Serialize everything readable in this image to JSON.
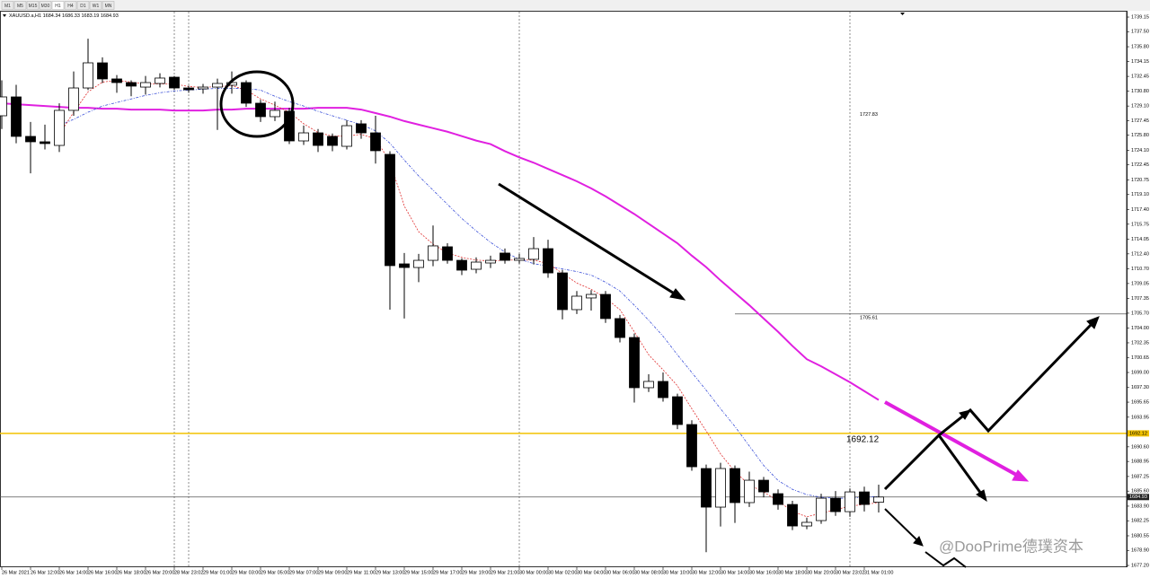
{
  "chart_data": {
    "type": "candlestick",
    "symbol": "XAUUSD.a,H1",
    "timeframes": [
      "M1",
      "M5",
      "M15",
      "M30",
      "H1",
      "H4",
      "D1",
      "W1",
      "MN"
    ],
    "active_timeframe": 4,
    "categories": [
      "26 Mar 2021",
      null,
      "26 Mar 12:00",
      null,
      "26 Mar 14:00",
      null,
      "26 Mar 16:00",
      null,
      "26 Mar 18:00",
      null,
      "26 Mar 20:00",
      null,
      "28 Mar 23:02",
      null,
      "29 Mar 01:00",
      null,
      "29 Mar 03:00",
      null,
      "29 Mar 05:00",
      null,
      "29 Mar 07:00",
      null,
      "29 Mar 09:00",
      null,
      "29 Mar 11:00",
      null,
      "29 Mar 13:00",
      null,
      "29 Mar 15:00",
      null,
      "29 Mar 17:00",
      null,
      "29 Mar 19:00",
      null,
      "29 Mar 21:00",
      null,
      "30 Mar 00:00",
      null,
      "30 Mar 02:00",
      null,
      "30 Mar 04:00",
      null,
      "30 Mar 06:00",
      null,
      "30 Mar 08:00",
      null,
      "30 Mar 10:00",
      null,
      "30 Mar 12:00",
      null,
      "30 Mar 14:00",
      null,
      "30 Mar 16:00",
      null,
      "30 Mar 18:00",
      null,
      "30 Mar 20:00",
      null,
      "30 Mar 23:02",
      null,
      "31 Mar 01:00",
      null
    ],
    "open": [
      1728.0,
      1730.13,
      1725.67,
      1725.06,
      1724.65,
      1728.61,
      1731.14,
      1733.98,
      1732.16,
      1731.75,
      1731.24,
      1731.65,
      1732.36,
      1731.14,
      1731.04,
      1731.24,
      1731.45,
      1731.75,
      1729.42,
      1727.9,
      1728.51,
      1725.16,
      1726.07,
      1725.67,
      1724.55,
      1727.09,
      1726.07,
      1723.64,
      1711.27,
      1710.86,
      1711.67,
      1713.2,
      1711.67,
      1710.66,
      1711.37,
      1712.49,
      1711.67,
      1711.78,
      1712.99,
      1710.25,
      1706.1,
      1707.42,
      1707.82,
      1705.09,
      1702.95,
      1697.28,
      1697.99,
      1696.26,
      1693.12,
      1688.15,
      1683.79,
      1688.15,
      1684.3,
      1686.83,
      1685.31,
      1684.09,
      1681.66,
      1682.27,
      1684.8,
      1683.28,
      1685.51,
      1684.34
    ],
    "high": [
      1732.0,
      1731.5,
      1727.3,
      1727.0,
      1729.4,
      1733.0,
      1736.7,
      1734.6,
      1732.6,
      1732.0,
      1732.5,
      1732.8,
      1732.5,
      1731.4,
      1731.6,
      1732.2,
      1733.0,
      1732.0,
      1729.8,
      1729.6,
      1728.9,
      1726.9,
      1726.5,
      1726.0,
      1727.5,
      1727.5,
      1728.0,
      1724.0,
      1712.5,
      1712.4,
      1715.6,
      1713.6,
      1711.9,
      1712.0,
      1712.2,
      1713.0,
      1712.4,
      1714.3,
      1714.0,
      1710.6,
      1708.2,
      1708.3,
      1708.2,
      1705.5,
      1703.4,
      1698.8,
      1699.0,
      1696.6,
      1693.6,
      1688.6,
      1688.8,
      1688.5,
      1687.8,
      1687.2,
      1685.8,
      1684.5,
      1682.6,
      1685.3,
      1685.6,
      1685.9,
      1686.1,
      1686.33
    ],
    "low": [
      1726.5,
      1724.9,
      1721.5,
      1724.2,
      1723.9,
      1728.0,
      1730.9,
      1731.7,
      1730.6,
      1730.2,
      1730.4,
      1731.2,
      1730.9,
      1730.6,
      1730.5,
      1726.4,
      1730.5,
      1729.0,
      1727.3,
      1727.4,
      1724.8,
      1724.7,
      1723.9,
      1724.0,
      1724.2,
      1725.4,
      1722.6,
      1706.1,
      1705.1,
      1709.2,
      1711.0,
      1711.3,
      1710.0,
      1710.2,
      1710.8,
      1711.3,
      1711.3,
      1711.2,
      1709.7,
      1705.0,
      1705.6,
      1706.0,
      1704.6,
      1702.4,
      1695.6,
      1696.8,
      1695.7,
      1692.6,
      1687.9,
      1678.7,
      1681.6,
      1682.0,
      1683.8,
      1684.9,
      1683.5,
      1681.2,
      1681.3,
      1681.9,
      1682.8,
      1682.7,
      1683.3,
      1683.19
    ],
    "close": [
      1730.13,
      1725.67,
      1725.06,
      1724.86,
      1728.61,
      1731.14,
      1733.98,
      1732.16,
      1731.75,
      1731.35,
      1731.75,
      1732.26,
      1731.14,
      1730.94,
      1731.24,
      1731.65,
      1731.75,
      1729.42,
      1727.9,
      1728.61,
      1725.16,
      1726.07,
      1724.65,
      1724.65,
      1726.88,
      1726.07,
      1724.05,
      1711.07,
      1710.86,
      1711.67,
      1713.3,
      1711.67,
      1710.56,
      1711.47,
      1711.67,
      1711.67,
      1711.88,
      1712.99,
      1710.25,
      1706.1,
      1707.62,
      1707.82,
      1705.09,
      1702.95,
      1697.28,
      1697.99,
      1696.16,
      1693.12,
      1688.35,
      1683.79,
      1688.15,
      1684.3,
      1686.83,
      1685.51,
      1684.09,
      1681.66,
      1682.07,
      1684.8,
      1683.28,
      1685.51,
      1684.09,
      1684.93
    ],
    "ma": [
      {
        "color": "#e020e0",
        "width": 2,
        "dash": "",
        "values": [
          1729.4,
          1729.3,
          1729.2,
          1729.1,
          1729.0,
          1728.9,
          1728.9,
          1728.8,
          1728.8,
          1728.7,
          1728.7,
          1728.7,
          1728.6,
          1728.6,
          1728.6,
          1728.7,
          1728.7,
          1728.8,
          1728.8,
          1728.8,
          1728.8,
          1728.8,
          1728.9,
          1728.9,
          1728.9,
          1728.7,
          1728.3,
          1727.9,
          1727.4,
          1727.0,
          1726.6,
          1726.2,
          1725.7,
          1725.2,
          1724.8,
          1724.0,
          1723.3,
          1722.7,
          1722.0,
          1721.3,
          1720.6,
          1719.8,
          1718.9,
          1717.9,
          1716.9,
          1715.8,
          1714.7,
          1713.6,
          1712.2,
          1710.9,
          1709.4,
          1708.0,
          1706.6,
          1705.1,
          1703.6,
          1702.0,
          1700.5,
          1699.7,
          1698.8,
          1697.9,
          1696.9,
          1695.9
        ]
      },
      {
        "color": "#3a4fd8",
        "width": 0.8,
        "dash": "3 1.5 1 1.5",
        "values": [
          null,
          null,
          null,
          null,
          1726.9,
          1727.6,
          1728.4,
          1729.1,
          1729.5,
          1729.9,
          1730.3,
          1730.6,
          1730.8,
          1730.9,
          1731.0,
          1731.1,
          1731.1,
          1731.1,
          1730.9,
          1730.2,
          1729.6,
          1729.1,
          1728.5,
          1728.0,
          1727.5,
          1727.0,
          1726.3,
          1724.9,
          1723.0,
          1721.2,
          1719.6,
          1718.0,
          1716.4,
          1715.0,
          1713.7,
          1712.6,
          1711.8,
          1711.3,
          1711.0,
          1710.7,
          1710.4,
          1710.0,
          1709.2,
          1708.2,
          1706.6,
          1704.9,
          1703.1,
          1701.0,
          1699.0,
          1697.0,
          1694.9,
          1692.9,
          1690.7,
          1688.5,
          1686.8,
          1685.8,
          1685.2,
          1684.9,
          1684.8,
          1684.8,
          1684.9,
          1685.0
        ]
      },
      {
        "color": "#e03030",
        "width": 0.8,
        "dash": "2 1.5",
        "values": [
          null,
          null,
          null,
          null,
          1725.9,
          1728.4,
          1730.7,
          1731.8,
          1732.0,
          1731.8,
          1731.6,
          1731.6,
          1731.6,
          1731.3,
          1731.2,
          1731.3,
          1731.4,
          1730.9,
          1729.9,
          1729.2,
          1728.4,
          1727.1,
          1726.1,
          1725.7,
          1725.7,
          1725.9,
          1725.4,
          1722.8,
          1717.8,
          1714.9,
          1713.5,
          1712.5,
          1712.0,
          1711.7,
          1711.6,
          1711.7,
          1711.7,
          1711.7,
          1711.3,
          1710.2,
          1709.1,
          1708.4,
          1707.4,
          1706.1,
          1703.6,
          1701.0,
          1699.3,
          1697.5,
          1694.9,
          1692.4,
          1689.8,
          1687.8,
          1686.3,
          1685.5,
          1684.5,
          1683.3,
          1682.7,
          1683.1,
          1683.5,
          1683.9,
          1684.1,
          1684.3
        ]
      }
    ],
    "ylim": [
      1677.0,
      1739.76
    ],
    "yticks": [
      1739.15,
      {
        "value": 1737.5,
        "label": "1737.50"
      },
      {
        "value": 1735.8,
        "label": "1735.80"
      },
      1734.15,
      1732.45,
      {
        "value": 1730.8,
        "label": "1730.80"
      },
      {
        "value": 1729.1,
        "label": "1729.10"
      },
      1727.45,
      {
        "value": 1725.8,
        "label": "1725.80"
      },
      {
        "value": 1724.1,
        "label": "1724.10"
      },
      1722.45,
      1720.75,
      {
        "value": 1719.1,
        "label": "1719.10"
      },
      {
        "value": 1717.4,
        "label": "1717.40"
      },
      1715.75,
      1714.05,
      {
        "value": 1712.4,
        "label": "1712.40"
      },
      {
        "value": 1710.7,
        "label": "1710.70"
      },
      1709.05,
      1707.35,
      {
        "value": 1705.7,
        "label": "1705.70"
      },
      {
        "value": 1704,
        "label": "1704.00"
      },
      1702.35,
      1700.65,
      {
        "value": 1699,
        "label": "1699.00"
      },
      {
        "value": 1697.3,
        "label": "1697.30"
      },
      1695.65,
      1693.95,
      {
        "value": 1690.6,
        "label": "1690.60"
      },
      1688.95,
      1687.25,
      {
        "value": 1685.6,
        "label": "1685.60"
      },
      {
        "value": 1683.9,
        "label": "1683.90"
      },
      1682.25,
      1680.55,
      {
        "value": 1678.9,
        "label": "1678.90"
      },
      {
        "value": 1677.2,
        "label": "1677.20"
      }
    ],
    "grid": false,
    "up_color": "#ffffff",
    "down_color": "#000000",
    "support_line": 1692.12,
    "support_color": "#f2c200",
    "resistance_line": 1705.61,
    "level_note": 1727.83,
    "last_price": 1684.93,
    "watermark": "@DooPrime德璞资本"
  }
}
